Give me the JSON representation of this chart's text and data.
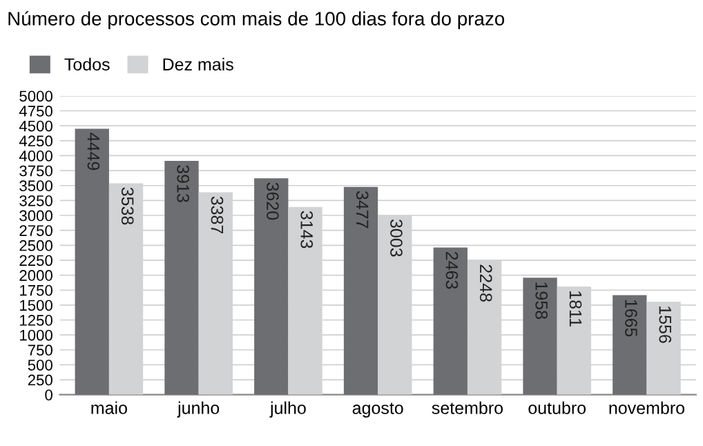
{
  "chart_data": {
    "type": "bar",
    "title": "Número de processos com mais de 100 dias fora do prazo",
    "categories": [
      "maio",
      "junho",
      "julho",
      "agosto",
      "setembro",
      "outubro",
      "novembro"
    ],
    "series": [
      {
        "name": "Todos",
        "color": "#6d6e71",
        "values": [
          4449,
          3913,
          3620,
          3477,
          2463,
          1958,
          1665
        ]
      },
      {
        "name": "Dez mais",
        "color": "#d1d3d4",
        "values": [
          3538,
          3387,
          3143,
          3003,
          2248,
          1811,
          1556
        ]
      }
    ],
    "ylim": [
      0,
      5000
    ],
    "yticks": [
      0,
      250,
      500,
      750,
      1000,
      1250,
      1500,
      1750,
      2000,
      2250,
      2500,
      2750,
      3000,
      3250,
      3500,
      3750,
      4000,
      4250,
      4500,
      4750,
      5000
    ],
    "grid": "y",
    "legend": "top left",
    "data_labels": true
  }
}
